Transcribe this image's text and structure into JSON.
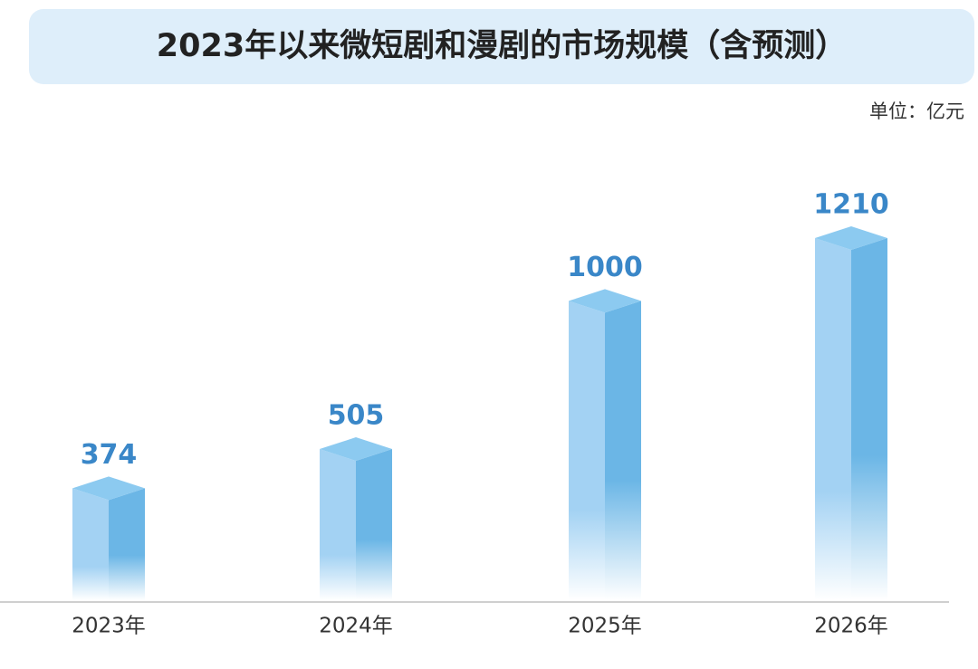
{
  "chart_data": {
    "type": "bar3d",
    "title": "2023年以来微短剧和漫剧的市场规模（含预测）",
    "unit": "单位：亿元",
    "categories": [
      "2023年",
      "2024年",
      "2025年",
      "2026年"
    ],
    "values": [
      374,
      505,
      1000,
      1210
    ],
    "color": "#6bb6e6"
  }
}
